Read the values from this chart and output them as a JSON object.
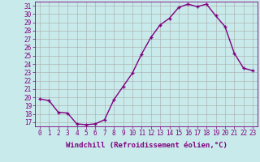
{
  "x": [
    0,
    1,
    2,
    3,
    4,
    5,
    6,
    7,
    8,
    9,
    10,
    11,
    12,
    13,
    14,
    15,
    16,
    17,
    18,
    19,
    20,
    21,
    22,
    23
  ],
  "y": [
    19.8,
    19.6,
    18.2,
    18.1,
    16.8,
    16.7,
    16.8,
    17.3,
    19.7,
    21.3,
    22.9,
    25.2,
    27.2,
    28.7,
    29.5,
    30.8,
    31.2,
    30.9,
    31.2,
    29.8,
    28.5,
    25.3,
    23.5,
    23.2
  ],
  "line_color": "#800080",
  "marker": "+",
  "marker_size": 3,
  "bg_color": "#c8eaea",
  "grid_color": "#aaaaaa",
  "xlabel": "Windchill (Refroidissement éolien,°C)",
  "ylim": [
    16.5,
    31.5
  ],
  "yticks": [
    17,
    18,
    19,
    20,
    21,
    22,
    23,
    24,
    25,
    26,
    27,
    28,
    29,
    30,
    31
  ],
  "xlim": [
    -0.5,
    23.5
  ],
  "xlabel_fontsize": 6.5,
  "tick_fontsize": 5.5,
  "line_width": 1.0,
  "label_color": "#800080",
  "spine_color": "#800080"
}
